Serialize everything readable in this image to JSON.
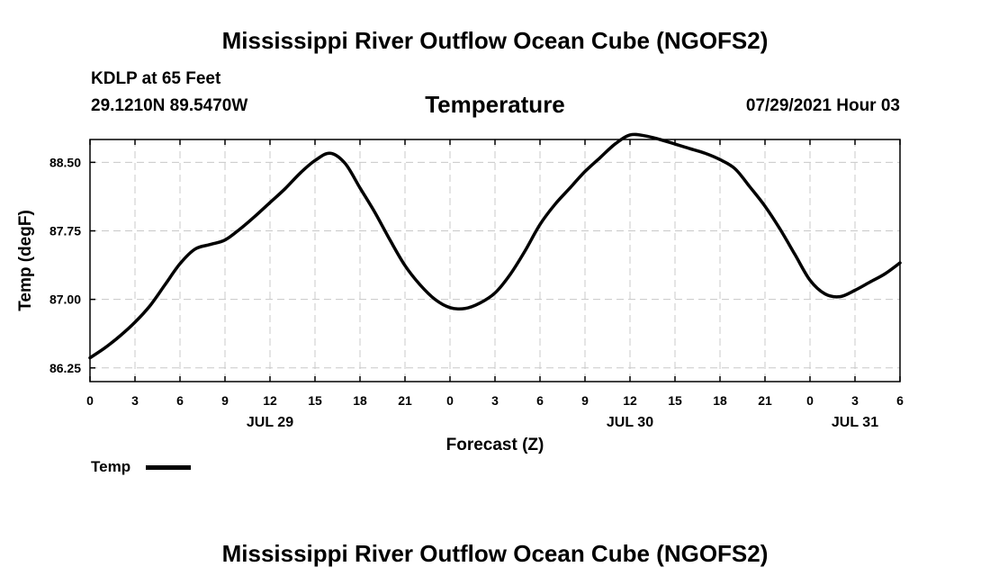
{
  "header": {
    "title": "Mississippi River Outflow Ocean Cube (NGOFS2)",
    "station": "KDLP at 65 Feet",
    "coords": "29.1210N  89.5470W",
    "parameter": "Temperature",
    "datetime": "07/29/2021 Hour 03"
  },
  "footer": {
    "title": "Mississippi River Outflow Ocean Cube (NGOFS2)"
  },
  "legend": {
    "label": "Temp",
    "color": "#000000"
  },
  "chart_data": {
    "type": "line",
    "title": "Temperature",
    "xlabel": "Forecast (Z)",
    "ylabel": "Temp (degF)",
    "xlim": [
      0,
      54
    ],
    "ylim": [
      86.1,
      88.75
    ],
    "grid": true,
    "yticks": [
      86.25,
      87.0,
      87.75,
      88.5
    ],
    "ytick_labels": [
      "86.25",
      "87.00",
      "87.75",
      "88.50"
    ],
    "xticks": [
      0,
      3,
      6,
      9,
      12,
      15,
      18,
      21,
      24,
      27,
      30,
      33,
      36,
      39,
      42,
      45,
      48,
      51,
      54
    ],
    "xtick_labels": [
      "0",
      "3",
      "6",
      "9",
      "12",
      "15",
      "18",
      "21",
      "0",
      "3",
      "6",
      "9",
      "12",
      "15",
      "18",
      "21",
      "0",
      "3",
      "6"
    ],
    "date_labels": [
      {
        "x": 12,
        "label": "JUL 29"
      },
      {
        "x": 36,
        "label": "JUL 30"
      },
      {
        "x": 51,
        "label": "JUL 31"
      }
    ],
    "series": [
      {
        "name": "Temp",
        "color": "#000000",
        "x": [
          0,
          1,
          2,
          3,
          4,
          5,
          6,
          7,
          8,
          9,
          10,
          11,
          12,
          13,
          14,
          15,
          16,
          17,
          18,
          19,
          20,
          21,
          22,
          23,
          24,
          25,
          26,
          27,
          28,
          29,
          30,
          31,
          32,
          33,
          34,
          35,
          36,
          37,
          38,
          39,
          40,
          41,
          42,
          43,
          44,
          45,
          46,
          47,
          48,
          49,
          50,
          51,
          52,
          53,
          54
        ],
        "values": [
          86.36,
          86.47,
          86.6,
          86.75,
          86.93,
          87.16,
          87.39,
          87.55,
          87.6,
          87.65,
          87.77,
          87.91,
          88.06,
          88.21,
          88.38,
          88.52,
          88.6,
          88.49,
          88.22,
          87.95,
          87.65,
          87.37,
          87.16,
          87.0,
          86.91,
          86.9,
          86.96,
          87.07,
          87.27,
          87.53,
          87.82,
          88.04,
          88.22,
          88.4,
          88.55,
          88.7,
          88.8,
          88.79,
          88.75,
          88.7,
          88.65,
          88.6,
          88.53,
          88.43,
          88.23,
          88.02,
          87.77,
          87.49,
          87.21,
          87.06,
          87.03,
          87.1,
          87.19,
          87.28,
          87.4
        ]
      }
    ]
  }
}
